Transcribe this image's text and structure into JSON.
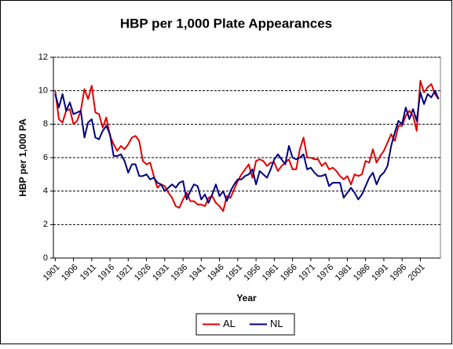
{
  "chart_data": {
    "type": "line",
    "title": "HBP per 1,000 Plate Appearances",
    "x_label": "Year",
    "y_label": "HBP per 1,000 PA",
    "categories": [
      "1901",
      null,
      null,
      null,
      null,
      "1906",
      null,
      null,
      null,
      null,
      "1911",
      null,
      null,
      null,
      null,
      "1916",
      null,
      null,
      null,
      null,
      "1921",
      null,
      null,
      null,
      null,
      "1926",
      null,
      null,
      null,
      null,
      "1931",
      null,
      null,
      null,
      null,
      "1936",
      null,
      null,
      null,
      null,
      "1941",
      null,
      null,
      null,
      null,
      "1946",
      null,
      null,
      null,
      null,
      "1951",
      null,
      null,
      null,
      null,
      "1956",
      null,
      null,
      null,
      null,
      "1961",
      null,
      null,
      null,
      null,
      "1966",
      null,
      null,
      null,
      null,
      "1971",
      null,
      null,
      null,
      null,
      "1976",
      null,
      null,
      null,
      null,
      "1981",
      null,
      null,
      null,
      null,
      "1986",
      null,
      null,
      null,
      null,
      "1991",
      null,
      null,
      null,
      null,
      "1996",
      null,
      null,
      null,
      null,
      "2001",
      null,
      null,
      null,
      null,
      null
    ],
    "series": [
      {
        "name": "AL",
        "color": "#e00000",
        "values": [
          10,
          8.3,
          8.1,
          8.8,
          8.9,
          8.0,
          8.2,
          8.8,
          10.1,
          9.5,
          10.3,
          8.7,
          8.6,
          7.8,
          8.4,
          7.3,
          6.8,
          6.4,
          6.7,
          6.5,
          6.8,
          7.2,
          7.3,
          7.0,
          5.8,
          5.6,
          5.7,
          4.9,
          4.2,
          4.4,
          4.3,
          3.9,
          3.6,
          3.1,
          3.0,
          3.5,
          3.9,
          3.4,
          3.4,
          3.2,
          3.2,
          3.1,
          3.6,
          3.7,
          3.3,
          3.1,
          2.8,
          3.7,
          3.6,
          4.1,
          4.6,
          5.0,
          5.3,
          5.6,
          4.8,
          5.8,
          5.9,
          5.8,
          5.5,
          5.7,
          5.7,
          5.2,
          5.5,
          5.7,
          5.9,
          5.3,
          5.3,
          6.5,
          7.2,
          6.0,
          6.0,
          5.9,
          5.9,
          5.5,
          5.7,
          5.3,
          5.4,
          5.2,
          4.9,
          4.7,
          4.9,
          4.4,
          5.0,
          4.9,
          5.0,
          5.8,
          5.7,
          6.5,
          5.7,
          6.1,
          6.4,
          6.9,
          7.4,
          7.0,
          7.9,
          7.9,
          8.5,
          8.8,
          8.5,
          7.6,
          10.6,
          9.9,
          10.2,
          10.4,
          9.8,
          9.5
        ]
      },
      {
        "name": "NL",
        "color": "#000080",
        "values": [
          9.8,
          9.0,
          9.8,
          8.8,
          9.3,
          8.6,
          8.7,
          8.8,
          7.2,
          8.1,
          8.3,
          7.2,
          7.1,
          7.6,
          7.9,
          7.4,
          6.1,
          6.1,
          6.2,
          5.8,
          5.1,
          5.6,
          5.6,
          4.9,
          4.9,
          5.0,
          4.7,
          4.8,
          4.5,
          4.4,
          4.0,
          4.2,
          4.4,
          4.2,
          4.5,
          4.6,
          3.5,
          4.0,
          4.4,
          4.3,
          3.5,
          3.8,
          3.3,
          3.8,
          4.4,
          3.7,
          4.0,
          3.4,
          4.0,
          4.4,
          4.7,
          4.7,
          4.9,
          5.0,
          5.3,
          4.4,
          5.2,
          5.0,
          4.8,
          5.3,
          5.9,
          6.2,
          5.9,
          5.6,
          6.7,
          6.0,
          5.9,
          6.0,
          6.2,
          5.3,
          5.4,
          5.1,
          4.9,
          4.9,
          5.0,
          4.3,
          4.5,
          4.5,
          4.5,
          3.6,
          3.9,
          4.2,
          3.9,
          3.5,
          3.8,
          4.3,
          4.8,
          5.1,
          4.4,
          4.9,
          5.1,
          5.5,
          6.7,
          7.5,
          8.2,
          8.0,
          9.0,
          8.3,
          8.9,
          8.2,
          9.9,
          9.2,
          9.8,
          9.6,
          10.0,
          9.5
        ]
      }
    ],
    "ylim": [
      0,
      12
    ],
    "yticks": [
      0,
      2,
      4,
      6,
      8,
      10,
      12
    ],
    "grid": true,
    "legend": "bottom"
  }
}
